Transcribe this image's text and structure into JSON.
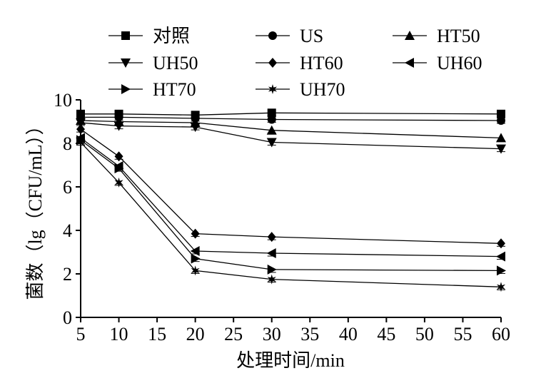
{
  "chart_data": {
    "type": "line",
    "title": "",
    "xlabel": "处理时间/min",
    "ylabel": "菌数（lg（CFU/mL））",
    "x": [
      5,
      10,
      20,
      30,
      60
    ],
    "xlim": [
      5,
      60
    ],
    "ylim": [
      0,
      10
    ],
    "xticks": [
      5,
      10,
      15,
      20,
      25,
      30,
      35,
      40,
      45,
      50,
      55,
      60
    ],
    "yticks": [
      0,
      2,
      4,
      6,
      8,
      10
    ],
    "grid": false,
    "legend_position": "top",
    "series": [
      {
        "name": "对照",
        "marker": "square",
        "values": [
          9.35,
          9.35,
          9.3,
          9.4,
          9.35
        ]
      },
      {
        "name": "US",
        "marker": "circle",
        "values": [
          9.2,
          9.2,
          9.15,
          9.1,
          9.05
        ]
      },
      {
        "name": "HT50",
        "marker": "triangle-up",
        "values": [
          9.05,
          9.0,
          8.95,
          8.6,
          8.25
        ]
      },
      {
        "name": "UH50",
        "marker": "triangle-down",
        "values": [
          8.95,
          8.8,
          8.75,
          8.05,
          7.75
        ]
      },
      {
        "name": "HT60",
        "marker": "diamond",
        "values": [
          8.65,
          7.4,
          3.85,
          3.7,
          3.4
        ]
      },
      {
        "name": "UH60",
        "marker": "triangle-left",
        "values": [
          8.25,
          6.95,
          3.05,
          2.95,
          2.8
        ]
      },
      {
        "name": "HT70",
        "marker": "triangle-right",
        "values": [
          8.15,
          6.85,
          2.7,
          2.2,
          2.15
        ]
      },
      {
        "name": "UH70",
        "marker": "star",
        "values": [
          8.05,
          6.2,
          2.15,
          1.75,
          1.4
        ]
      }
    ]
  }
}
